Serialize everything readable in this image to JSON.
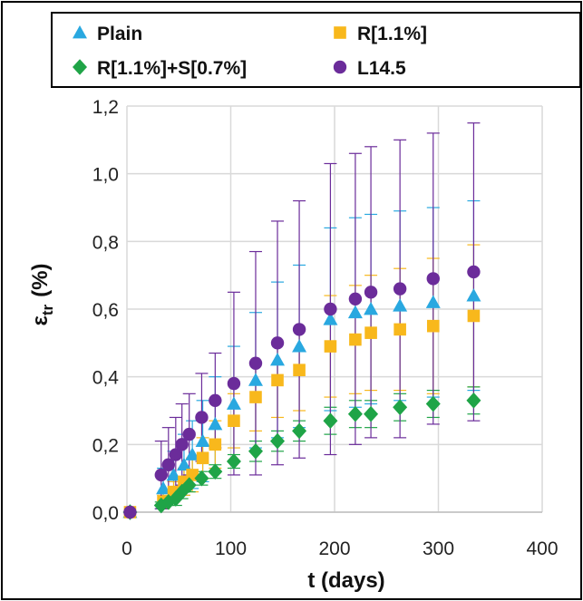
{
  "chart_data": {
    "type": "scatter",
    "xlabel": "t (days)",
    "ylabel_main": "ε",
    "ylabel_sub": "tr",
    "ylabel_unit": "(%)",
    "xlim": [
      0,
      400
    ],
    "ylim": [
      0,
      1.2
    ],
    "x_ticks": [
      "0",
      "100",
      "200",
      "300",
      "400"
    ],
    "y_ticks": [
      "0,0",
      "0,2",
      "0,4",
      "0,6",
      "0,8",
      "1,0",
      "1,2"
    ],
    "grid": true,
    "legend_position": "top",
    "series": [
      {
        "name": "Plain",
        "marker": "triangle",
        "color": "#29a8e0",
        "x": [
          3,
          35,
          45,
          55,
          63,
          73,
          85,
          103,
          124,
          145,
          166,
          196,
          220,
          235,
          263,
          295,
          334
        ],
        "y": [
          0.0,
          0.07,
          0.11,
          0.14,
          0.17,
          0.21,
          0.26,
          0.32,
          0.39,
          0.45,
          0.49,
          0.57,
          0.59,
          0.6,
          0.61,
          0.62,
          0.64
        ],
        "err": [
          0.0,
          0.06,
          0.07,
          0.09,
          0.1,
          0.12,
          0.14,
          0.17,
          0.2,
          0.23,
          0.24,
          0.27,
          0.28,
          0.28,
          0.28,
          0.28,
          0.28
        ]
      },
      {
        "name": "R[1.1%]",
        "marker": "square",
        "color": "#f8b81c",
        "x": [
          3,
          35,
          45,
          55,
          63,
          73,
          85,
          103,
          124,
          145,
          166,
          196,
          220,
          235,
          263,
          295,
          334
        ],
        "y": [
          0.0,
          0.03,
          0.06,
          0.09,
          0.11,
          0.16,
          0.2,
          0.27,
          0.34,
          0.39,
          0.42,
          0.49,
          0.51,
          0.53,
          0.54,
          0.55,
          0.58
        ],
        "err": [
          0.0,
          0.02,
          0.03,
          0.04,
          0.05,
          0.06,
          0.07,
          0.08,
          0.1,
          0.11,
          0.12,
          0.15,
          0.16,
          0.17,
          0.18,
          0.2,
          0.21
        ]
      },
      {
        "name": "R[1.1%]+S[0.7%]",
        "marker": "diamond",
        "color": "#1fa447",
        "x": [
          3,
          33,
          40,
          47,
          53,
          60,
          72,
          85,
          103,
          124,
          145,
          166,
          196,
          220,
          235,
          263,
          295,
          334
        ],
        "y": [
          0.0,
          0.02,
          0.03,
          0.04,
          0.06,
          0.08,
          0.1,
          0.12,
          0.15,
          0.18,
          0.21,
          0.24,
          0.27,
          0.29,
          0.29,
          0.31,
          0.32,
          0.33
        ],
        "err": [
          0.0,
          0.01,
          0.01,
          0.02,
          0.02,
          0.02,
          0.02,
          0.02,
          0.02,
          0.03,
          0.03,
          0.03,
          0.04,
          0.04,
          0.04,
          0.04,
          0.04,
          0.04
        ]
      },
      {
        "name": "L14.5",
        "marker": "circle",
        "color": "#6b2c9a",
        "x": [
          3,
          33,
          40,
          47,
          53,
          60,
          72,
          85,
          103,
          124,
          145,
          166,
          196,
          220,
          235,
          263,
          295,
          334
        ],
        "y": [
          0.0,
          0.11,
          0.14,
          0.17,
          0.2,
          0.23,
          0.28,
          0.33,
          0.38,
          0.44,
          0.5,
          0.54,
          0.6,
          0.63,
          0.65,
          0.66,
          0.69,
          0.71
        ],
        "err": [
          0.0,
          0.1,
          0.11,
          0.11,
          0.12,
          0.12,
          0.13,
          0.14,
          0.27,
          0.33,
          0.36,
          0.38,
          0.43,
          0.43,
          0.43,
          0.44,
          0.43,
          0.44
        ]
      }
    ]
  }
}
